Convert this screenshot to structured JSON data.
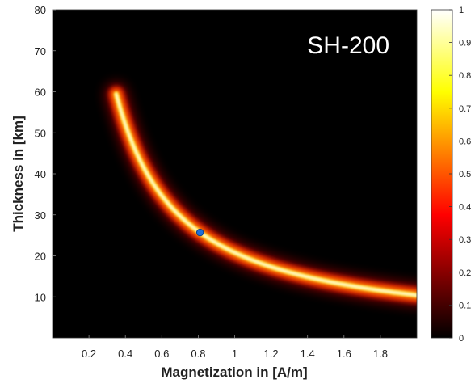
{
  "chart_data": {
    "type": "heatmap",
    "panel_label": "SH-200",
    "xlabel": "Magnetization in [A/m]",
    "ylabel": "Thickness in [km]",
    "xlim": [
      0.0,
      2.0
    ],
    "ylim": [
      0,
      80
    ],
    "x_ticks": [
      "0.2",
      "0.4",
      "0.6",
      "0.8",
      "1",
      "1.2",
      "1.4",
      "1.6",
      "1.8"
    ],
    "y_ticks": [
      "10",
      "20",
      "30",
      "40",
      "50",
      "60",
      "70",
      "80"
    ],
    "colorbar": {
      "colormap": "hot",
      "range": [
        0,
        1
      ],
      "ticks": [
        "0",
        "0.1",
        "0.2",
        "0.3",
        "0.4",
        "0.5",
        "0.6",
        "0.7",
        "0.8",
        "0.9",
        "1"
      ]
    },
    "ridge": {
      "description_shape": "magnetization × thickness ≈ constant",
      "product": 20.8,
      "x_range": [
        0.35,
        2.0
      ]
    },
    "best_fit_point": {
      "x": 0.81,
      "y": 25.7,
      "color": "#1e6fd9"
    },
    "colors": {
      "background": "#000000",
      "ridge_peak": "#ffffff"
    }
  }
}
